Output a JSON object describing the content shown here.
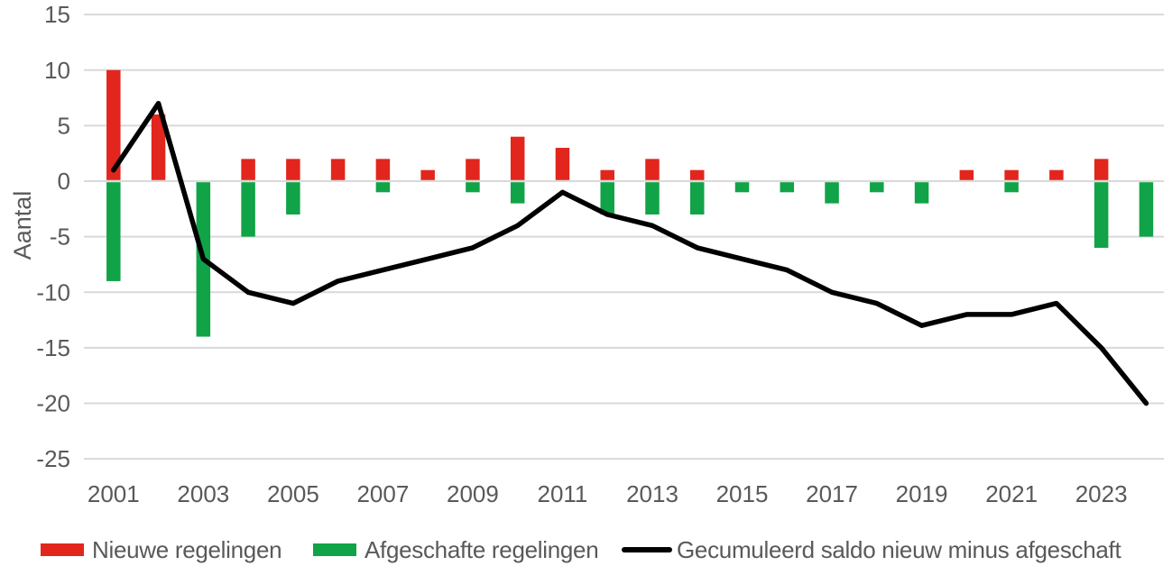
{
  "chart_data": {
    "type": "bar+line",
    "title": "",
    "ylabel": "Aantal",
    "xlabel": "",
    "x": [
      2001,
      2002,
      2003,
      2004,
      2005,
      2006,
      2007,
      2008,
      2009,
      2010,
      2011,
      2012,
      2013,
      2014,
      2015,
      2016,
      2017,
      2018,
      2019,
      2020,
      2021,
      2022,
      2023,
      2024
    ],
    "xtick_labels": [
      "2001",
      "2003",
      "2005",
      "2007",
      "2009",
      "2011",
      "2013",
      "2015",
      "2017",
      "2019",
      "2021",
      "2023"
    ],
    "ylim": [
      -25,
      15
    ],
    "ytick_step": 5,
    "yticks": [
      15,
      10,
      5,
      0,
      -5,
      -10,
      -15,
      -20,
      -25
    ],
    "grid": true,
    "legend_position": "bottom",
    "colors": {
      "new_bar": "#E2261D",
      "abolished_bar": "#11A347",
      "cumulative_line": "#000000",
      "gridline": "#D9D9D9",
      "text": "#595959"
    },
    "series": [
      {
        "name": "Nieuwe regelingen",
        "type": "bar",
        "color": "#E2261D",
        "values": [
          10,
          6,
          0,
          2,
          2,
          2,
          2,
          1,
          2,
          4,
          3,
          1,
          2,
          1,
          0,
          0,
          0,
          0,
          0,
          1,
          1,
          1,
          2,
          0
        ]
      },
      {
        "name": "Afgeschafte regelingen",
        "type": "bar",
        "color": "#11A347",
        "values": [
          -9,
          0,
          -14,
          -5,
          -3,
          0,
          -1,
          0,
          -1,
          -2,
          0,
          -3,
          -3,
          -3,
          -1,
          -1,
          -2,
          -1,
          -2,
          0,
          -1,
          0,
          -6,
          -5
        ]
      },
      {
        "name": "Gecumuleerd saldo nieuw minus afgeschaft",
        "type": "line",
        "color": "#000000",
        "values": [
          1,
          7,
          -7,
          -10,
          -11,
          -9,
          -8,
          -7,
          -6,
          -4,
          -1,
          -3,
          -4,
          -6,
          -7,
          -8,
          -10,
          -11,
          -13,
          -12,
          -12,
          -11,
          -15,
          -20
        ]
      }
    ]
  }
}
